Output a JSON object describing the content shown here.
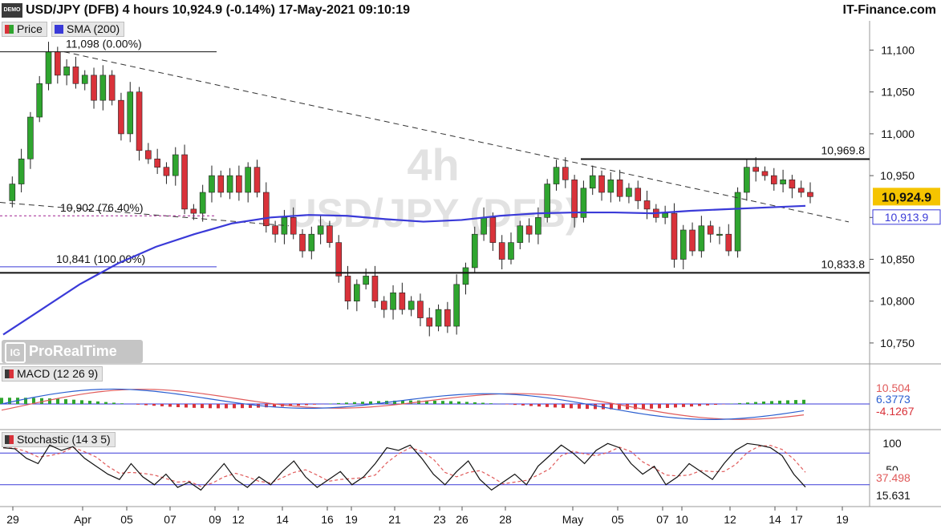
{
  "header": {
    "app_icon_label": "DEMO",
    "title": "USD/JPY (DFB) 4 hours 10,924.9 (-0.14%) 17-May-2021 09:10:19",
    "brand": "IT-Finance.com"
  },
  "legend": {
    "price_label": "Price",
    "sma_label": "SMA (200)",
    "macd_label": "MACD (12 26 9)",
    "stoch_label": "Stochastic (14 3 5)"
  },
  "watermark": {
    "timeframe": "4h",
    "symbol": "USD/JPY (DFB)",
    "logo": "IG",
    "platform": "ProRealTime"
  },
  "colors": {
    "up": "#2fa52f",
    "down": "#d9323a",
    "sma": "#3a3ad8",
    "current": "#f5c400",
    "macd_line": "#2b5fd0",
    "signal_line": "#e05a5a"
  },
  "chart_data": [
    {
      "type": "candlestick",
      "title": "USD/JPY (DFB) 4 hours",
      "ylim": [
        10725,
        11135
      ],
      "y_ticks": [
        10750,
        10800,
        10850,
        10900,
        10950,
        11000,
        11050,
        11100
      ],
      "y_tick_labels": [
        "10,750",
        "10,800",
        "10,850",
        "10,900",
        "10,950",
        "11,000",
        "11,050",
        "11,100"
      ],
      "x_tick_labels": [
        "29",
        "Apr",
        "05",
        "07",
        "09",
        "12",
        "14",
        "16",
        "19",
        "21",
        "23",
        "26",
        "28",
        "May",
        "05",
        "07",
        "10",
        "12",
        "14",
        "17",
        "19"
      ],
      "close_path": [
        10920,
        10940,
        10970,
        11020,
        11060,
        11098,
        11070,
        11080,
        11060,
        11070,
        11040,
        11070,
        11040,
        11000,
        11050,
        10980,
        10970,
        10960,
        10950,
        10975,
        10910,
        10905,
        10930,
        10950,
        10930,
        10950,
        10930,
        10960,
        10930,
        10890,
        10880,
        10900,
        10880,
        10860,
        10880,
        10890,
        10870,
        10830,
        10800,
        10820,
        10830,
        10800,
        10790,
        10810,
        10790,
        10800,
        10780,
        10770,
        10790,
        10770,
        10820,
        10840,
        10880,
        10900,
        10870,
        10850,
        10870,
        10890,
        10880,
        10900,
        10940,
        10960,
        10945,
        10900,
        10935,
        10950,
        10930,
        10945,
        10925,
        10935,
        10920,
        10910,
        10900,
        10905,
        10850,
        10885,
        10860,
        10890,
        10880,
        10880,
        10860,
        10930,
        10960,
        10955,
        10950,
        10940,
        10945,
        10935,
        10930,
        10924.9
      ],
      "trendline": {
        "from": 11098,
        "to": 10910
      },
      "levels": [
        {
          "value": 11098,
          "label": "11,098 (0.00%)"
        },
        {
          "value": 10902,
          "label": "10,902 (76.40%)"
        },
        {
          "value": 10841,
          "label": "10,841 (100.00%)"
        },
        {
          "value": 10969.8,
          "label": "10,969.8"
        },
        {
          "value": 10833.8,
          "label": "10,833.8"
        }
      ],
      "current_price": {
        "value": 10924.9,
        "label": "10,924.9"
      },
      "sma_value": {
        "value": 10913.9,
        "label": "10,913.9"
      },
      "sma_path": [
        10760,
        10790,
        10820,
        10845,
        10865,
        10880,
        10893,
        10900,
        10903,
        10902,
        10898,
        10895,
        10897,
        10902,
        10905,
        10906,
        10906,
        10905,
        10908,
        10910,
        10912,
        10913.9
      ]
    },
    {
      "type": "macd",
      "name": "MACD (12 26 9)",
      "value_labels": [
        "10.504",
        "6.3773",
        "-4.1267"
      ],
      "values": [
        10.504,
        6.3773,
        -4.1267
      ]
    },
    {
      "type": "stochastic",
      "name": "Stochastic (14 3 5)",
      "y_ticks": [
        100,
        50
      ],
      "value_labels": [
        "37.498",
        "15.631"
      ],
      "values": [
        37.498,
        15.631
      ],
      "k_path": [
        90,
        88,
        70,
        60,
        95,
        85,
        92,
        70,
        55,
        40,
        30,
        60,
        35,
        20,
        40,
        15,
        25,
        10,
        35,
        60,
        30,
        15,
        35,
        20,
        45,
        65,
        35,
        15,
        30,
        45,
        20,
        35,
        60,
        90,
        85,
        95,
        70,
        40,
        20,
        45,
        65,
        30,
        10,
        25,
        40,
        20,
        55,
        75,
        95,
        80,
        60,
        85,
        98,
        90,
        60,
        40,
        55,
        20,
        35,
        60,
        45,
        30,
        60,
        85,
        98,
        95,
        90,
        75,
        40,
        15.631
      ]
    }
  ]
}
